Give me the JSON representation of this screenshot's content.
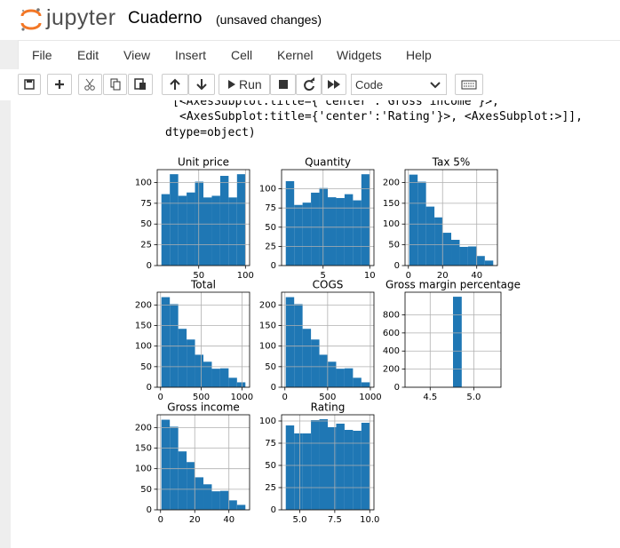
{
  "header": {
    "logo": "jupyter",
    "notebook_name": "Cuaderno",
    "status": "(unsaved changes)"
  },
  "menu": [
    "File",
    "Edit",
    "View",
    "Insert",
    "Cell",
    "Kernel",
    "Widgets",
    "Help"
  ],
  "toolbar": {
    "run": "Run",
    "cell_type": "Code"
  },
  "output": {
    "lines": [
      "[<AxesSubplot:title={'center':'Gross income'}>,",
      "<AxesSubplot:title={'center':'Rating'}>, <AxesSubplot:>]],",
      "dtype=object)"
    ]
  },
  "chart_data": [
    {
      "type": "histogram",
      "title": "Unit price",
      "color": "#1f77b4",
      "grid": true,
      "bins": [
        10.08,
        19.07,
        28.06,
        37.04,
        46.03,
        55.02,
        64.01,
        73.0,
        81.98,
        90.97,
        99.96
      ],
      "values": [
        86,
        110,
        84,
        88,
        101,
        82,
        84,
        108,
        82,
        110
      ],
      "xlim": [
        5.59,
        104.45
      ],
      "ylim": [
        0,
        115.5
      ],
      "xticks": [
        50,
        100
      ],
      "yticks": [
        0,
        25,
        50,
        75,
        100
      ]
    },
    {
      "type": "histogram",
      "title": "Quantity",
      "color": "#1f77b4",
      "grid": true,
      "bins": [
        1,
        1.9,
        2.8,
        3.7,
        4.6,
        5.5,
        6.4,
        7.3,
        8.2,
        9.1,
        10
      ],
      "values": [
        110,
        79,
        82,
        95,
        101,
        89,
        88,
        93,
        85,
        119
      ],
      "xlim": [
        0.55,
        10.45
      ],
      "ylim": [
        0,
        125
      ],
      "xticks": [
        5,
        10
      ],
      "yticks": [
        0,
        25,
        50,
        75,
        100
      ]
    },
    {
      "type": "histogram",
      "title": "Tax 5%",
      "color": "#1f77b4",
      "grid": true,
      "bins": [
        0.51,
        5.42,
        10.34,
        15.25,
        20.16,
        25.08,
        29.99,
        34.9,
        39.82,
        44.73,
        49.65
      ],
      "values": [
        219,
        202,
        142,
        116,
        79,
        62,
        45,
        46,
        23,
        12
      ],
      "xlim": [
        -1.95,
        52.1
      ],
      "ylim": [
        0,
        231
      ],
      "xticks": [
        0,
        20,
        40
      ],
      "yticks": [
        0,
        50,
        100,
        150,
        200
      ]
    },
    {
      "type": "histogram",
      "title": "Total",
      "color": "#1f77b4",
      "grid": true,
      "bins": [
        10.68,
        113.88,
        217.08,
        320.27,
        423.47,
        526.67,
        629.86,
        733.06,
        836.26,
        939.45,
        1042.65
      ],
      "values": [
        219,
        202,
        142,
        116,
        79,
        62,
        45,
        46,
        23,
        12
      ],
      "xlim": [
        -40.9,
        1094.2
      ],
      "ylim": [
        0,
        231
      ],
      "xticks": [
        0,
        500,
        1000
      ],
      "yticks": [
        0,
        50,
        100,
        150,
        200
      ]
    },
    {
      "type": "histogram",
      "title": "COGS",
      "color": "#1f77b4",
      "grid": true,
      "bins": [
        10.17,
        108.45,
        206.74,
        305.02,
        403.31,
        501.59,
        599.87,
        698.16,
        796.44,
        894.72,
        993.0
      ],
      "values": [
        219,
        202,
        142,
        116,
        79,
        62,
        45,
        46,
        23,
        12
      ],
      "xlim": [
        -38.97,
        1042.14
      ],
      "ylim": [
        0,
        231
      ],
      "xticks": [
        0,
        500,
        1000
      ],
      "yticks": [
        0,
        50,
        100,
        150,
        200
      ]
    },
    {
      "type": "histogram",
      "title": "Gross margin percentage",
      "color": "#1f77b4",
      "grid": true,
      "bins": [
        4.262,
        4.362,
        4.462,
        4.562,
        4.662,
        4.762,
        4.862,
        4.962,
        5.062,
        5.162,
        5.262
      ],
      "values": [
        0,
        0,
        0,
        0,
        0,
        1000,
        0,
        0,
        0,
        0
      ],
      "xlim": [
        4.212,
        5.312
      ],
      "ylim": [
        0,
        1050
      ],
      "xticks": [
        {
          "value": 4.5,
          "label": "4.5"
        },
        {
          "value": 5,
          "label": "5.0"
        }
      ],
      "yticks": [
        0,
        200,
        400,
        600,
        800
      ]
    },
    {
      "type": "histogram",
      "title": "Gross income",
      "color": "#1f77b4",
      "grid": true,
      "bins": [
        0.51,
        5.42,
        10.34,
        15.25,
        20.16,
        25.08,
        29.99,
        34.9,
        39.82,
        44.73,
        49.65
      ],
      "values": [
        219,
        202,
        142,
        116,
        79,
        62,
        45,
        46,
        23,
        12
      ],
      "xlim": [
        -1.95,
        52.1
      ],
      "ylim": [
        0,
        231
      ],
      "xticks": [
        0,
        20,
        40
      ],
      "yticks": [
        0,
        50,
        100,
        150,
        200
      ]
    },
    {
      "type": "histogram",
      "title": "Rating",
      "color": "#1f77b4",
      "grid": true,
      "bins": [
        4,
        4.6,
        5.2,
        5.8,
        6.4,
        7,
        7.6,
        8.2,
        8.8,
        9.4,
        10
      ],
      "values": [
        95,
        86,
        86,
        101,
        102,
        93,
        97,
        90,
        89,
        98
      ],
      "xlim": [
        3.7,
        10.3
      ],
      "ylim": [
        0,
        107
      ],
      "xticks": [
        {
          "value": 5,
          "label": "5.0"
        },
        {
          "value": 7.5,
          "label": "7.5"
        },
        {
          "value": 10,
          "label": "10.0"
        }
      ],
      "yticks": [
        0,
        25,
        50,
        75,
        100
      ]
    }
  ]
}
